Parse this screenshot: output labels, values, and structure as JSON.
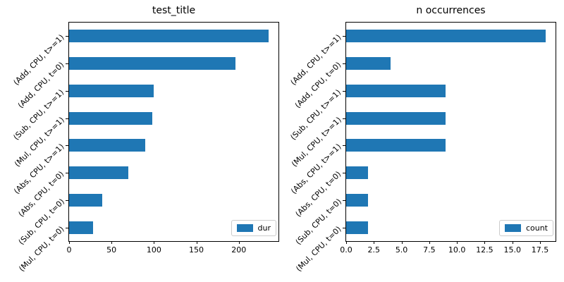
{
  "figure": {
    "background_color": "#ffffff",
    "spine_color": "#000000",
    "text_color": "#000000",
    "legend_border_color": "#cccccc"
  },
  "chart_data": [
    {
      "type": "bar",
      "orientation": "horizontal",
      "title": "test_title",
      "categories": [
        "(Add, CPU, t>=1)",
        "(Add, CPU, t=0)",
        "(Sub, CPU, t>=1)",
        "(Mul, CPU, t>=1)",
        "(Abs, CPU, t>=1)",
        "(Abs, CPU, t=0)",
        "(Sub, CPU, t=0)",
        "(Mul, CPU, t=0)"
      ],
      "series": [
        {
          "name": "dur",
          "values": [
            235,
            196,
            100,
            98,
            90,
            70,
            39,
            28
          ]
        }
      ],
      "bar_color": "#1f77b4",
      "xlim": [
        0,
        246.75
      ],
      "xticks": [
        {
          "value": 0,
          "label": "0"
        },
        {
          "value": 50,
          "label": "50"
        },
        {
          "value": 100,
          "label": "100"
        },
        {
          "value": 150,
          "label": "150"
        },
        {
          "value": 200,
          "label": "200"
        }
      ],
      "grid": false,
      "legend": {
        "label": "dur",
        "position": "lower right"
      }
    },
    {
      "type": "bar",
      "orientation": "horizontal",
      "title": "n occurrences",
      "categories": [
        "(Add, CPU, t>=1)",
        "(Add, CPU, t=0)",
        "(Sub, CPU, t>=1)",
        "(Mul, CPU, t>=1)",
        "(Abs, CPU, t>=1)",
        "(Abs, CPU, t=0)",
        "(Sub, CPU, t=0)",
        "(Mul, CPU, t=0)"
      ],
      "series": [
        {
          "name": "count",
          "values": [
            18,
            4,
            9,
            9,
            9,
            2,
            2,
            2
          ]
        }
      ],
      "bar_color": "#1f77b4",
      "xlim": [
        0,
        18.9
      ],
      "xticks": [
        {
          "value": 0,
          "label": "0.0"
        },
        {
          "value": 2.5,
          "label": "2.5"
        },
        {
          "value": 5,
          "label": "5.0"
        },
        {
          "value": 7.5,
          "label": "7.5"
        },
        {
          "value": 10,
          "label": "10.0"
        },
        {
          "value": 12.5,
          "label": "12.5"
        },
        {
          "value": 15,
          "label": "15.0"
        },
        {
          "value": 17.5,
          "label": "17.5"
        }
      ],
      "grid": false,
      "legend": {
        "label": "count",
        "position": "lower right"
      }
    }
  ]
}
